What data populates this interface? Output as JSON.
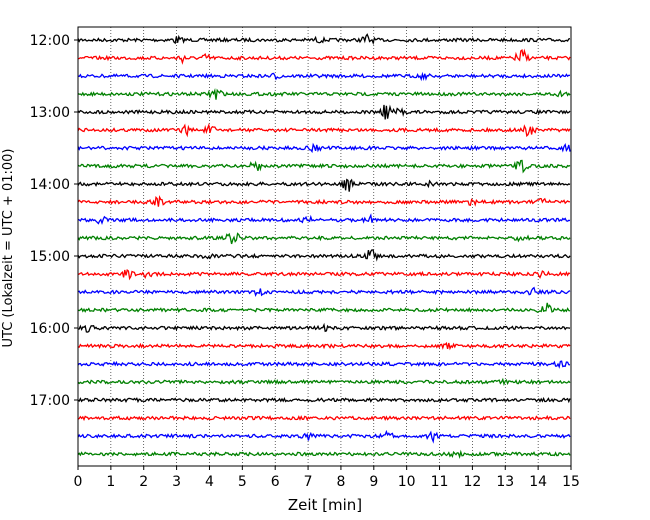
{
  "chart_data": {
    "type": "line",
    "title": "",
    "xlabel": "Zeit  [min]",
    "ylabel": "UTC (Lokalzeit = UTC + 01:00)",
    "xlim": [
      0,
      15
    ],
    "x_ticks": [
      "0",
      "1",
      "2",
      "3",
      "4",
      "5",
      "6",
      "7",
      "8",
      "9",
      "10",
      "11",
      "12",
      "13",
      "14",
      "15"
    ],
    "y_ticks": [
      {
        "label": "12:00",
        "minutes": 0
      },
      {
        "label": "13:00",
        "minutes": 60
      },
      {
        "label": "14:00",
        "minutes": 120
      },
      {
        "label": "15:00",
        "minutes": 180
      },
      {
        "label": "16:00",
        "minutes": 240
      },
      {
        "label": "17:00",
        "minutes": 300
      }
    ],
    "grid": "vertical dotted",
    "traces": [
      {
        "start": "12:00",
        "color": "#000000",
        "events": [
          [
            3.0,
            3
          ],
          [
            8.8,
            5
          ],
          [
            7.3,
            2
          ]
        ]
      },
      {
        "start": "12:15",
        "color": "#ff0000",
        "events": [
          [
            3.2,
            4
          ],
          [
            3.9,
            3
          ],
          [
            13.5,
            9
          ]
        ]
      },
      {
        "start": "12:30",
        "color": "#0000ff",
        "events": [
          [
            10.5,
            2
          ],
          [
            6.0,
            2
          ]
        ]
      },
      {
        "start": "12:45",
        "color": "#008000",
        "events": [
          [
            4.2,
            8
          ],
          [
            14.7,
            2
          ]
        ]
      },
      {
        "start": "13:00",
        "color": "#000000",
        "events": [
          [
            9.4,
            9
          ],
          [
            9.8,
            3
          ]
        ]
      },
      {
        "start": "13:15",
        "color": "#ff0000",
        "events": [
          [
            3.3,
            4
          ],
          [
            4.0,
            4
          ],
          [
            13.7,
            7
          ]
        ]
      },
      {
        "start": "13:30",
        "color": "#0000ff",
        "events": [
          [
            7.2,
            3
          ],
          [
            14.9,
            3
          ]
        ]
      },
      {
        "start": "13:45",
        "color": "#008000",
        "events": [
          [
            5.4,
            5
          ],
          [
            13.5,
            6
          ]
        ]
      },
      {
        "start": "14:00",
        "color": "#000000",
        "events": [
          [
            8.2,
            8
          ],
          [
            10.8,
            3
          ]
        ]
      },
      {
        "start": "14:15",
        "color": "#ff0000",
        "events": [
          [
            2.4,
            5
          ],
          [
            12.0,
            3
          ],
          [
            14.1,
            3
          ]
        ]
      },
      {
        "start": "14:30",
        "color": "#0000ff",
        "events": [
          [
            0.7,
            3
          ],
          [
            7.0,
            3
          ],
          [
            8.9,
            4
          ]
        ]
      },
      {
        "start": "14:45",
        "color": "#008000",
        "events": [
          [
            4.7,
            8
          ],
          [
            13.5,
            3
          ]
        ]
      },
      {
        "start": "15:00",
        "color": "#000000",
        "events": [
          [
            4.0,
            3
          ],
          [
            8.9,
            8
          ]
        ]
      },
      {
        "start": "15:15",
        "color": "#ff0000",
        "events": [
          [
            1.5,
            5
          ],
          [
            2.1,
            4
          ],
          [
            14.1,
            3
          ]
        ]
      },
      {
        "start": "15:30",
        "color": "#0000ff",
        "events": [
          [
            5.5,
            3
          ],
          [
            13.8,
            5
          ]
        ]
      },
      {
        "start": "15:45",
        "color": "#008000",
        "events": [
          [
            14.2,
            8
          ]
        ]
      },
      {
        "start": "16:00",
        "color": "#000000",
        "events": [
          [
            0.3,
            3
          ],
          [
            7.5,
            2
          ]
        ]
      },
      {
        "start": "16:15",
        "color": "#ff0000",
        "events": [
          [
            11.3,
            2
          ]
        ]
      },
      {
        "start": "16:30",
        "color": "#0000ff",
        "events": [
          [
            14.7,
            2
          ]
        ]
      },
      {
        "start": "16:45",
        "color": "#008000",
        "events": [
          [
            13.0,
            2
          ]
        ]
      },
      {
        "start": "17:00",
        "color": "#000000",
        "events": []
      },
      {
        "start": "17:15",
        "color": "#ff0000",
        "events": []
      },
      {
        "start": "17:30",
        "color": "#0000ff",
        "events": [
          [
            7.0,
            3
          ],
          [
            9.4,
            3
          ],
          [
            10.8,
            4
          ]
        ]
      },
      {
        "start": "17:45",
        "color": "#008000",
        "events": [
          [
            11.5,
            2
          ]
        ]
      }
    ]
  }
}
